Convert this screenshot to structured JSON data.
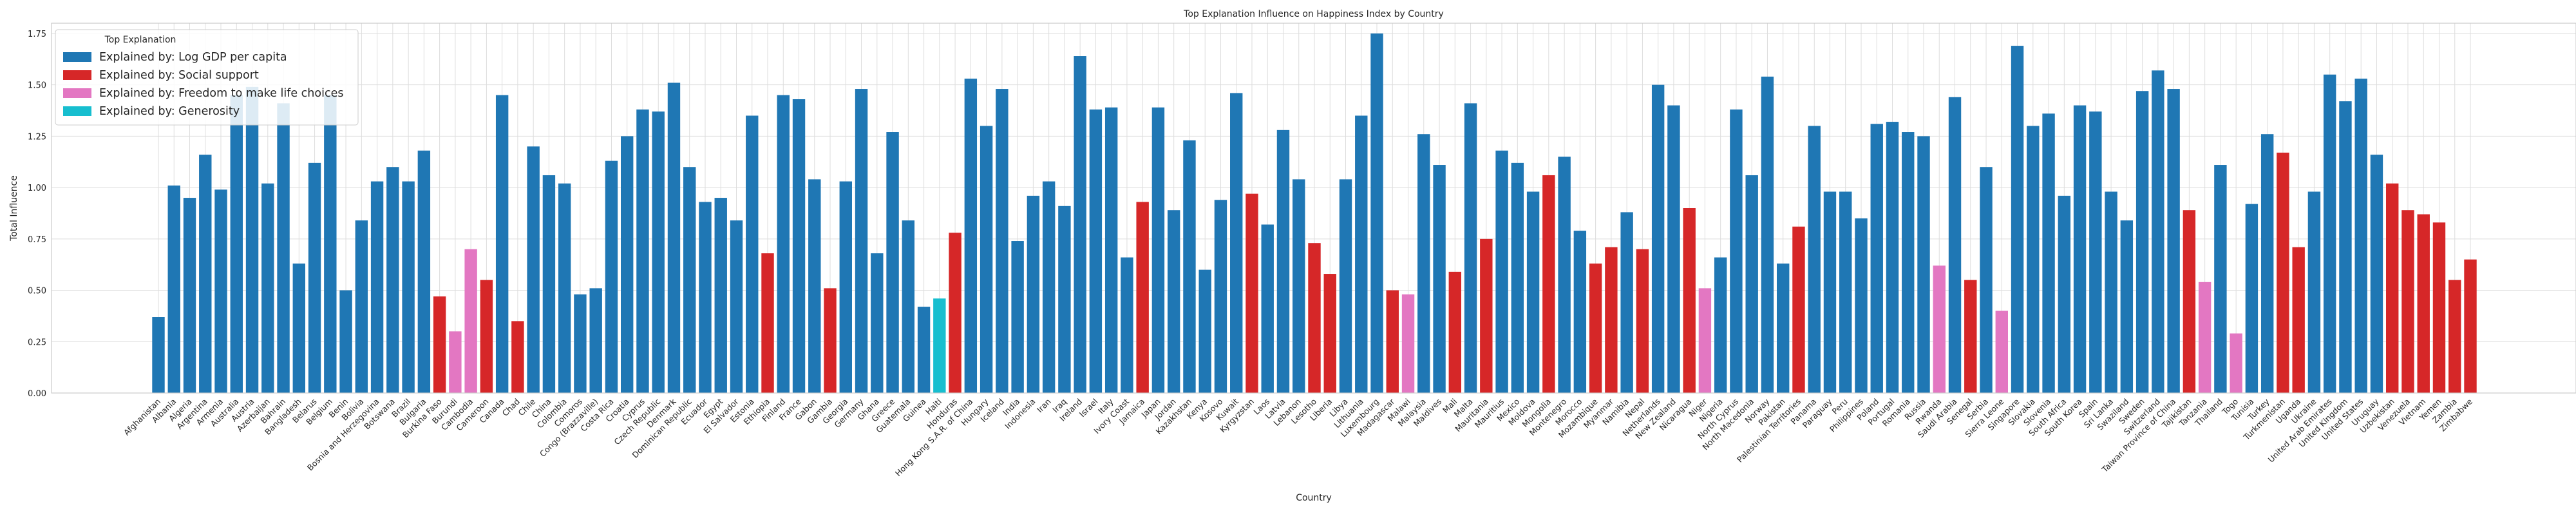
{
  "chart_data": {
    "type": "bar",
    "title": "Top Explanation Influence on Happiness Index by Country",
    "xlabel": "Country",
    "ylabel": "Total Influence",
    "ylim": [
      0,
      1.8
    ],
    "yticks": [
      "0.00",
      "0.25",
      "0.50",
      "0.75",
      "1.00",
      "1.25",
      "1.50",
      "1.75"
    ],
    "grid": true,
    "legend_position": "top-left",
    "legend_title": "Top Explanation",
    "legend": [
      {
        "key": "gdp",
        "label": "Explained by: Log GDP per capita",
        "color": "#1f77b4"
      },
      {
        "key": "social",
        "label": "Explained by: Social support",
        "color": "#d62728"
      },
      {
        "key": "freedom",
        "label": "Explained by: Freedom to make life choices",
        "color": "#e377c2"
      },
      {
        "key": "generosity",
        "label": "Explained by: Generosity",
        "color": "#17becf"
      }
    ],
    "categories": [
      "Afghanistan",
      "Albania",
      "Algeria",
      "Argentina",
      "Armenia",
      "Australia",
      "Austria",
      "Azerbaijan",
      "Bahrain",
      "Bangladesh",
      "Belarus",
      "Belgium",
      "Benin",
      "Bolivia",
      "Bosnia and Herzegovina",
      "Botswana",
      "Brazil",
      "Bulgaria",
      "Burkina Faso",
      "Burundi",
      "Cambodia",
      "Cameroon",
      "Canada",
      "Chad",
      "Chile",
      "China",
      "Colombia",
      "Comoros",
      "Congo (Brazzaville)",
      "Costa Rica",
      "Croatia",
      "Cyprus",
      "Czech Republic",
      "Denmark",
      "Dominican Republic",
      "Ecuador",
      "Egypt",
      "El Salvador",
      "Estonia",
      "Ethiopia",
      "Finland",
      "France",
      "Gabon",
      "Gambia",
      "Georgia",
      "Germany",
      "Ghana",
      "Greece",
      "Guatemala",
      "Guinea",
      "Haiti",
      "Honduras",
      "Hong Kong S.A.R. of China",
      "Hungary",
      "Iceland",
      "India",
      "Indonesia",
      "Iran",
      "Iraq",
      "Ireland",
      "Israel",
      "Italy",
      "Ivory Coast",
      "Jamaica",
      "Japan",
      "Jordan",
      "Kazakhstan",
      "Kenya",
      "Kosovo",
      "Kuwait",
      "Kyrgyzstan",
      "Laos",
      "Latvia",
      "Lebanon",
      "Lesotho",
      "Liberia",
      "Libya",
      "Lithuania",
      "Luxembourg",
      "Madagascar",
      "Malawi",
      "Malaysia",
      "Maldives",
      "Mali",
      "Malta",
      "Mauritania",
      "Mauritius",
      "Mexico",
      "Moldova",
      "Mongolia",
      "Montenegro",
      "Morocco",
      "Mozambique",
      "Myanmar",
      "Namibia",
      "Nepal",
      "Netherlands",
      "New Zealand",
      "Nicaragua",
      "Niger",
      "Nigeria",
      "North Cyprus",
      "North Macedonia",
      "Norway",
      "Pakistan",
      "Palestinian Territories",
      "Panama",
      "Paraguay",
      "Peru",
      "Philippines",
      "Poland",
      "Portugal",
      "Romania",
      "Russia",
      "Rwanda",
      "Saudi Arabia",
      "Senegal",
      "Serbia",
      "Sierra Leone",
      "Singapore",
      "Slovakia",
      "Slovenia",
      "South Africa",
      "South Korea",
      "Spain",
      "Sri Lanka",
      "Swaziland",
      "Sweden",
      "Switzerland",
      "Taiwan Province of China",
      "Tajikistan",
      "Tanzania",
      "Thailand",
      "Togo",
      "Tunisia",
      "Turkey",
      "Turkmenistan",
      "Uganda",
      "Ukraine",
      "United Arab Emirates",
      "United Kingdom",
      "United States",
      "Uruguay",
      "Uzbekistan",
      "Venezuela",
      "Vietnam",
      "Yemen",
      "Zambia",
      "Zimbabwe"
    ],
    "values": [
      0.37,
      1.01,
      0.95,
      1.16,
      0.99,
      1.45,
      1.49,
      1.02,
      1.41,
      0.63,
      1.12,
      1.45,
      0.5,
      0.84,
      1.03,
      1.1,
      1.03,
      1.18,
      0.47,
      0.3,
      0.7,
      0.55,
      1.45,
      0.35,
      1.2,
      1.06,
      1.02,
      0.48,
      0.51,
      1.13,
      1.25,
      1.38,
      1.37,
      1.51,
      1.1,
      0.93,
      0.95,
      0.84,
      1.35,
      0.68,
      1.45,
      1.43,
      1.04,
      0.51,
      1.03,
      1.48,
      0.68,
      1.27,
      0.84,
      0.42,
      0.46,
      0.78,
      1.53,
      1.3,
      1.48,
      0.74,
      0.96,
      1.03,
      0.91,
      1.64,
      1.38,
      1.39,
      0.66,
      0.93,
      1.39,
      0.89,
      1.23,
      0.6,
      0.94,
      1.46,
      0.97,
      0.82,
      1.28,
      1.04,
      0.73,
      0.58,
      1.04,
      1.35,
      1.75,
      0.5,
      0.48,
      1.26,
      1.11,
      0.59,
      1.41,
      0.75,
      1.18,
      1.12,
      0.98,
      1.06,
      1.15,
      0.79,
      0.63,
      0.71,
      0.88,
      0.7,
      1.5,
      1.4,
      0.9,
      0.51,
      0.66,
      1.38,
      1.06,
      1.54,
      0.63,
      0.81,
      1.3,
      0.98,
      0.98,
      0.85,
      1.31,
      1.32,
      1.27,
      1.25,
      0.62,
      1.44,
      0.55,
      1.1,
      0.4,
      1.69,
      1.3,
      1.36,
      0.96,
      1.4,
      1.37,
      0.98,
      0.84,
      1.47,
      1.57,
      1.48,
      0.89,
      0.54,
      1.11,
      0.29,
      0.92,
      1.26,
      1.17,
      0.71,
      0.98,
      1.55,
      1.42,
      1.53,
      1.16,
      1.02,
      0.89,
      0.87,
      0.83,
      0.55,
      0.65
    ],
    "explanations": [
      "gdp",
      "gdp",
      "gdp",
      "gdp",
      "gdp",
      "gdp",
      "gdp",
      "gdp",
      "gdp",
      "gdp",
      "gdp",
      "gdp",
      "gdp",
      "gdp",
      "gdp",
      "gdp",
      "gdp",
      "gdp",
      "social",
      "freedom",
      "freedom",
      "social",
      "gdp",
      "social",
      "gdp",
      "gdp",
      "gdp",
      "gdp",
      "gdp",
      "gdp",
      "gdp",
      "gdp",
      "gdp",
      "gdp",
      "gdp",
      "gdp",
      "gdp",
      "gdp",
      "gdp",
      "social",
      "gdp",
      "gdp",
      "gdp",
      "social",
      "gdp",
      "gdp",
      "gdp",
      "gdp",
      "gdp",
      "gdp",
      "generosity",
      "social",
      "gdp",
      "gdp",
      "gdp",
      "gdp",
      "gdp",
      "gdp",
      "gdp",
      "gdp",
      "gdp",
      "gdp",
      "gdp",
      "social",
      "gdp",
      "gdp",
      "gdp",
      "gdp",
      "gdp",
      "gdp",
      "social",
      "gdp",
      "gdp",
      "gdp",
      "social",
      "social",
      "gdp",
      "gdp",
      "gdp",
      "social",
      "freedom",
      "gdp",
      "gdp",
      "social",
      "gdp",
      "social",
      "gdp",
      "gdp",
      "gdp",
      "social",
      "gdp",
      "gdp",
      "social",
      "social",
      "gdp",
      "social",
      "gdp",
      "gdp",
      "social",
      "freedom",
      "gdp",
      "gdp",
      "gdp",
      "gdp",
      "gdp",
      "social",
      "gdp",
      "gdp",
      "gdp",
      "gdp",
      "gdp",
      "gdp",
      "gdp",
      "gdp",
      "freedom",
      "gdp",
      "social",
      "gdp",
      "freedom",
      "gdp",
      "gdp",
      "gdp",
      "gdp",
      "gdp",
      "gdp",
      "gdp",
      "gdp",
      "gdp",
      "gdp",
      "gdp",
      "social",
      "freedom",
      "gdp",
      "freedom",
      "gdp",
      "gdp",
      "social",
      "social",
      "gdp",
      "gdp",
      "gdp",
      "gdp",
      "gdp",
      "social",
      "social",
      "social",
      "social",
      "social",
      "social"
    ]
  }
}
